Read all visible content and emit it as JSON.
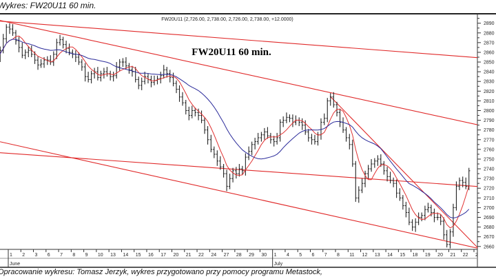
{
  "page": {
    "caption_top": "Wykres: FW20U11 60 min.",
    "caption_bottom": "Opracowanie wykresu: Tomasz Jerzyk, wykres przygotowano przy pomocy programu Metastock,"
  },
  "chart_data": {
    "type": "bar",
    "subtype": "ohlc-60min-with-moving-averages",
    "title": "FW20U11 60 min.",
    "header": "FW20U11 (2,726.00, 2,738.00, 2,726.00, 2,738.00, +12.0000)",
    "ylim": [
      2657,
      2899
    ],
    "y_ticks": [
      2660,
      2670,
      2680,
      2690,
      2700,
      2710,
      2720,
      2730,
      2740,
      2750,
      2760,
      2770,
      2780,
      2790,
      2800,
      2810,
      2820,
      2830,
      2840,
      2850,
      2860,
      2870,
      2880,
      2890
    ],
    "y_axis_side": "right",
    "grid": false,
    "colors": {
      "bars": "#222222",
      "short_ma": "#e03030",
      "long_ma": "#2a2a9a",
      "trendlines": "#e02828",
      "frame": "#333333"
    },
    "days": [
      {
        "label": "1",
        "month": ""
      },
      {
        "label": "1",
        "month": "June"
      },
      {
        "label": "2",
        "month": ""
      },
      {
        "label": "3",
        "month": ""
      },
      {
        "label": "6",
        "month": ""
      },
      {
        "label": "7",
        "month": ""
      },
      {
        "label": "8",
        "month": ""
      },
      {
        "label": "9",
        "month": ""
      },
      {
        "label": "10",
        "month": ""
      },
      {
        "label": "13",
        "month": ""
      },
      {
        "label": "14",
        "month": ""
      },
      {
        "label": "15",
        "month": ""
      },
      {
        "label": "16",
        "month": ""
      },
      {
        "label": "17",
        "month": ""
      },
      {
        "label": "20",
        "month": ""
      },
      {
        "label": "21",
        "month": ""
      },
      {
        "label": "22",
        "month": ""
      },
      {
        "label": "24",
        "month": ""
      },
      {
        "label": "27",
        "month": ""
      },
      {
        "label": "28",
        "month": ""
      },
      {
        "label": "29",
        "month": ""
      },
      {
        "label": "30",
        "month": ""
      },
      {
        "label": "1",
        "month": "July"
      },
      {
        "label": "4",
        "month": ""
      },
      {
        "label": "5",
        "month": ""
      },
      {
        "label": "6",
        "month": ""
      },
      {
        "label": "7",
        "month": ""
      },
      {
        "label": "8",
        "month": ""
      },
      {
        "label": "11",
        "month": ""
      },
      {
        "label": "12",
        "month": ""
      },
      {
        "label": "13",
        "month": ""
      },
      {
        "label": "14",
        "month": ""
      },
      {
        "label": "15",
        "month": ""
      },
      {
        "label": "18",
        "month": ""
      },
      {
        "label": "19",
        "month": ""
      },
      {
        "label": "20",
        "month": ""
      },
      {
        "label": "21",
        "month": ""
      },
      {
        "label": "22",
        "month": ""
      },
      {
        "label": "2",
        "month": ""
      }
    ],
    "closes_by_day": [
      [
        2855,
        2862,
        2874,
        2886
      ],
      [
        2884,
        2880,
        2872,
        2865
      ],
      [
        2857,
        2860,
        2862,
        2858
      ],
      [
        2852,
        2847,
        2848,
        2852
      ],
      [
        2852,
        2850,
        2858,
        2870
      ],
      [
        2873,
        2868,
        2864,
        2860
      ],
      [
        2858,
        2855,
        2850,
        2845
      ],
      [
        2835,
        2832,
        2838,
        2840
      ],
      [
        2834,
        2838,
        2840,
        2838
      ],
      [
        2835,
        2836,
        2845,
        2850
      ],
      [
        2850,
        2846,
        2842,
        2840
      ],
      [
        2832,
        2826,
        2830,
        2835
      ],
      [
        2832,
        2829,
        2831,
        2833
      ],
      [
        2836,
        2842,
        2838,
        2834
      ],
      [
        2828,
        2822,
        2814,
        2808
      ],
      [
        2800,
        2795,
        2800,
        2798
      ],
      [
        2795,
        2790,
        2780,
        2770
      ],
      [
        2760,
        2755,
        2748,
        2742
      ],
      [
        2735,
        2722,
        2730,
        2738
      ],
      [
        2735,
        2740,
        2738,
        2752
      ],
      [
        2758,
        2765,
        2768,
        2772
      ],
      [
        2775,
        2778,
        2774,
        2770
      ],
      [
        2768,
        2772,
        2788,
        2790
      ],
      [
        2793,
        2792,
        2788,
        2790
      ],
      [
        2788,
        2785,
        2778,
        2772
      ],
      [
        2770,
        2768,
        2775,
        2788
      ],
      [
        2792,
        2810,
        2814,
        2806
      ],
      [
        2798,
        2788,
        2780,
        2772
      ],
      [
        2765,
        2745,
        2710,
        2718
      ],
      [
        2725,
        2735,
        2740,
        2745
      ],
      [
        2748,
        2750,
        2745,
        2738
      ],
      [
        2732,
        2728,
        2725,
        2715
      ],
      [
        2710,
        2702,
        2695,
        2685
      ],
      [
        2680,
        2685,
        2690,
        2692
      ],
      [
        2698,
        2700,
        2695,
        2690
      ],
      [
        2690,
        2686,
        2672,
        2662
      ],
      [
        2675,
        2700,
        2722,
        2728
      ],
      [
        2726,
        2722,
        2738
      ]
    ],
    "last_bar": {
      "open": 2726.0,
      "high": 2738.0,
      "low": 2726.0,
      "close": 2738.0,
      "change": 12.0
    },
    "trendlines": [
      {
        "start": {
          "day": 1,
          "price": 2891.5
        },
        "end": {
          "day": 37,
          "price": 2855.8
        }
      },
      {
        "start": {
          "day": 1,
          "price": 2891
        },
        "end": {
          "day": 37,
          "price": 2789
        }
      },
      {
        "start": {
          "day": 1,
          "price": 2766
        },
        "end": {
          "day": 37,
          "price": 2662
        }
      },
      {
        "start": {
          "day": 1,
          "price": 2756
        },
        "end": {
          "day": 37,
          "price": 2723
        }
      },
      {
        "start": {
          "day": 27,
          "price": 2809
        },
        "end": {
          "day": 37,
          "price": 2676
        }
      }
    ]
  }
}
